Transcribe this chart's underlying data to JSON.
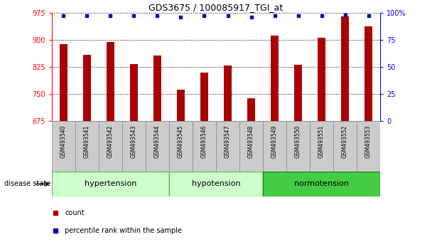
{
  "title": "GDS3675 / 100085917_TGI_at",
  "samples": [
    "GSM493540",
    "GSM493541",
    "GSM493542",
    "GSM493543",
    "GSM493544",
    "GSM493545",
    "GSM493546",
    "GSM493547",
    "GSM493548",
    "GSM493549",
    "GSM493550",
    "GSM493551",
    "GSM493552",
    "GSM493553"
  ],
  "counts": [
    887,
    858,
    893,
    833,
    857,
    762,
    808,
    828,
    738,
    912,
    830,
    905,
    965,
    937
  ],
  "percentiles": [
    97,
    97,
    97,
    97,
    97,
    96,
    97,
    97,
    96,
    97,
    97,
    97,
    98,
    97
  ],
  "groups": [
    {
      "label": "hypertension",
      "start": 0,
      "end": 5,
      "color": "#ccffcc",
      "border": "#66bb66"
    },
    {
      "label": "hypotension",
      "start": 5,
      "end": 9,
      "color": "#ccffcc",
      "border": "#66bb66"
    },
    {
      "label": "normotension",
      "start": 9,
      "end": 14,
      "color": "#44cc44",
      "border": "#228822"
    }
  ],
  "ylim": [
    675,
    975
  ],
  "yticks": [
    675,
    750,
    825,
    900,
    975
  ],
  "right_yticks": [
    0,
    25,
    50,
    75,
    100
  ],
  "bar_color": "#aa0000",
  "dot_color": "#0000bb",
  "background_color": "#ffffff",
  "plot_bg": "#ffffff",
  "xtick_bg": "#cccccc",
  "xtick_border": "#888888",
  "legend_count_label": "count",
  "legend_pct_label": "percentile rank within the sample",
  "title_fontsize": 9,
  "tick_fontsize": 7,
  "label_fontsize": 7,
  "group_fontsize": 8
}
